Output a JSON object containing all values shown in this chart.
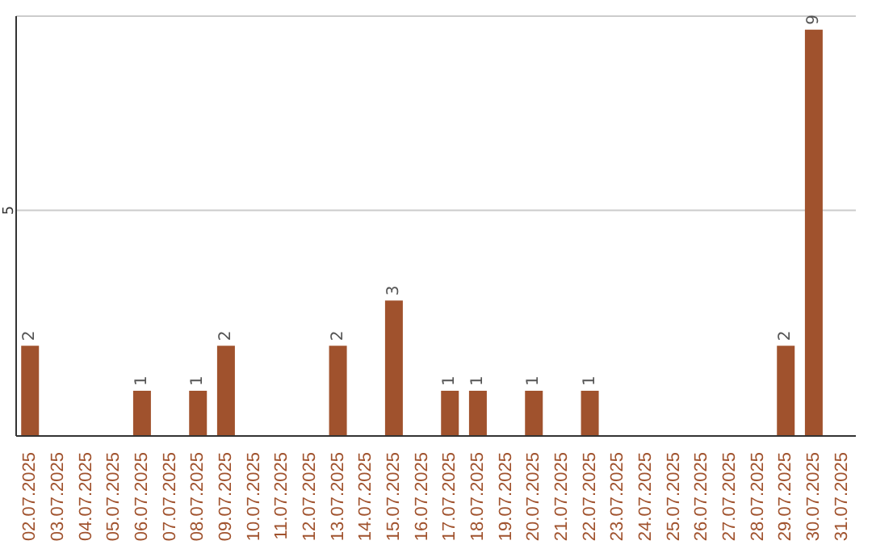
{
  "chart_data": {
    "type": "bar",
    "categories": [
      "02.07.2025",
      "03.07.2025",
      "04.07.2025",
      "05.07.2025",
      "06.07.2025",
      "07.07.2025",
      "08.07.2025",
      "09.07.2025",
      "10.07.2025",
      "11.07.2025",
      "12.07.2025",
      "13.07.2025",
      "14.07.2025",
      "15.07.2025",
      "16.07.2025",
      "17.07.2025",
      "18.07.2025",
      "19.07.2025",
      "20.07.2025",
      "21.07.2025",
      "22.07.2025",
      "23.07.2025",
      "24.07.2025",
      "25.07.2025",
      "26.07.2025",
      "27.07.2025",
      "28.07.2025",
      "29.07.2025",
      "30.07.2025",
      "31.07.2025"
    ],
    "values": [
      2,
      0,
      0,
      0,
      1,
      0,
      1,
      2,
      0,
      0,
      0,
      2,
      0,
      3,
      0,
      1,
      1,
      0,
      1,
      0,
      1,
      0,
      0,
      0,
      0,
      0,
      0,
      2,
      9,
      0
    ],
    "color": "#a0522d",
    "value_labels": [
      "2",
      null,
      null,
      null,
      "1",
      null,
      "1",
      "2",
      null,
      null,
      null,
      "2",
      null,
      "3",
      null,
      "1",
      "1",
      null,
      "1",
      null,
      "1",
      null,
      null,
      null,
      null,
      null,
      null,
      "2",
      "9",
      null
    ],
    "ylim": [
      0,
      9.3
    ],
    "yticks": [
      5
    ],
    "grid": "y"
  }
}
